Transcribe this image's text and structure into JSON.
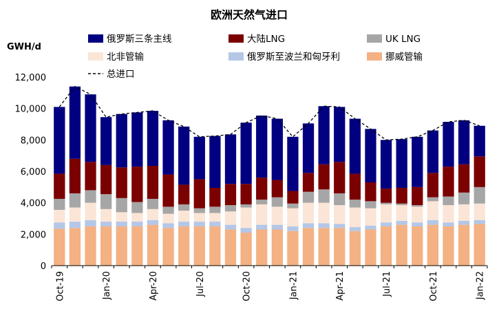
{
  "chart_data": {
    "type": "stacked-bar+line",
    "title": "欧洲天然气进口",
    "unit_label": "GWH/d",
    "ylim": [
      0,
      12000
    ],
    "yticks": [
      0,
      2000,
      4000,
      6000,
      8000,
      10000,
      12000
    ],
    "ytick_labels": [
      "0",
      "2,000",
      "4,000",
      "6,000",
      "8,000",
      "10,000",
      "12,000"
    ],
    "months": [
      "Oct-19",
      "Nov-19",
      "Dec-19",
      "Jan-20",
      "Feb-20",
      "Mar-20",
      "Apr-20",
      "May-20",
      "Jun-20",
      "Jul-20",
      "Aug-20",
      "Sep-20",
      "Oct-20",
      "Nov-20",
      "Dec-20",
      "Jan-21",
      "Feb-21",
      "Mar-21",
      "Apr-21",
      "May-21",
      "Jun-21",
      "Jul-21",
      "Aug-21",
      "Sep-21",
      "Oct-21",
      "Nov-21",
      "Dec-21",
      "Jan-22"
    ],
    "x_ticks": [
      {
        "index": 0,
        "label": "Oct-19"
      },
      {
        "index": 3,
        "label": "Jan-20"
      },
      {
        "index": 6,
        "label": "Apr-20"
      },
      {
        "index": 9,
        "label": "Jul-20"
      },
      {
        "index": 12,
        "label": "Oct-20"
      },
      {
        "index": 15,
        "label": "Jan-21"
      },
      {
        "index": 18,
        "label": "Apr-21"
      },
      {
        "index": 21,
        "label": "Jul-21"
      },
      {
        "index": 24,
        "label": "Oct-21"
      },
      {
        "index": 27,
        "label": "Jan-22"
      }
    ],
    "series": [
      {
        "name": "挪威管输",
        "color": "#f4b183",
        "values": [
          2350,
          2400,
          2500,
          2500,
          2500,
          2500,
          2600,
          2400,
          2500,
          2500,
          2500,
          2300,
          2100,
          2300,
          2300,
          2200,
          2400,
          2400,
          2400,
          2200,
          2300,
          2500,
          2600,
          2500,
          2600,
          2500,
          2600,
          2650
        ]
      },
      {
        "name": "俄罗斯至波兰和匈牙利",
        "color": "#b4c7e7",
        "values": [
          400,
          400,
          400,
          300,
          300,
          300,
          300,
          300,
          300,
          300,
          300,
          300,
          300,
          300,
          300,
          300,
          300,
          300,
          250,
          250,
          250,
          250,
          250,
          250,
          300,
          250,
          250,
          250
        ]
      },
      {
        "name": "北非管输",
        "color": "#fbe5d6",
        "values": [
          800,
          900,
          1100,
          800,
          600,
          550,
          700,
          600,
          700,
          550,
          550,
          850,
          1300,
          1300,
          1150,
          1150,
          1300,
          1300,
          1200,
          1250,
          1100,
          1150,
          1000,
          1000,
          1200,
          1100,
          1050,
          1050
        ]
      },
      {
        "name": "UK LNG",
        "color": "#a6a6a6",
        "values": [
          700,
          900,
          800,
          950,
          900,
          700,
          650,
          450,
          400,
          300,
          400,
          400,
          200,
          300,
          600,
          300,
          700,
          850,
          750,
          500,
          450,
          100,
          100,
          100,
          250,
          550,
          750,
          1050
        ]
      },
      {
        "name": "大陆LNG",
        "color": "#7b0000",
        "values": [
          1600,
          2200,
          1800,
          1850,
          1950,
          2250,
          2100,
          2050,
          1250,
          1850,
          1200,
          1350,
          1300,
          1400,
          1100,
          800,
          1200,
          1600,
          2000,
          1650,
          1200,
          900,
          1000,
          1150,
          1550,
          1900,
          1800,
          1950
        ]
      },
      {
        "name": "俄罗斯三条主线",
        "color": "#000080",
        "values": [
          4250,
          4600,
          4300,
          3050,
          3400,
          3450,
          3500,
          3450,
          3700,
          2700,
          3300,
          3150,
          3900,
          3950,
          3900,
          3450,
          3150,
          3700,
          3500,
          3500,
          3400,
          3100,
          3100,
          3200,
          2700,
          2850,
          2800,
          1950
        ]
      }
    ],
    "total_line": {
      "name": "总进口",
      "color": "#000000",
      "values": [
        10100,
        11400,
        10900,
        9450,
        9650,
        9750,
        9850,
        9250,
        8850,
        8200,
        8250,
        8350,
        9100,
        9550,
        9350,
        8200,
        9050,
        10150,
        10100,
        9350,
        8700,
        8000,
        8050,
        8200,
        8600,
        9150,
        9250,
        8900
      ]
    },
    "legend_order": [
      "俄罗斯三条主线",
      "大陆LNG",
      "UK LNG",
      "北非管输",
      "俄罗斯至波兰和匈牙利",
      "挪威管输",
      "总进口"
    ]
  }
}
